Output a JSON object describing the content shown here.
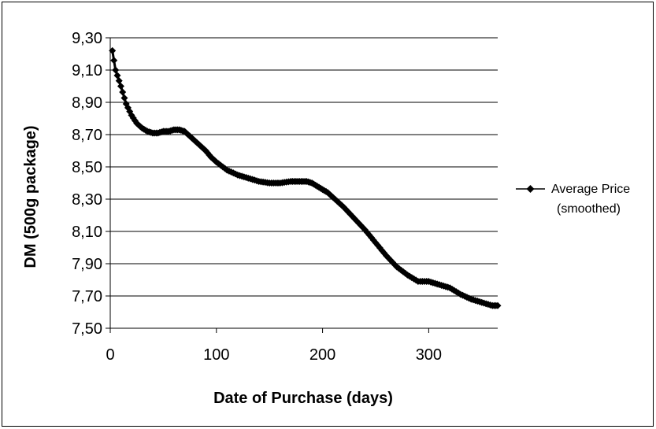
{
  "chart_data": {
    "type": "line",
    "xlabel": "Date of Purchase (days)",
    "ylabel": "DM (500g package)",
    "xlim": [
      0,
      365
    ],
    "ylim": [
      7.5,
      9.3
    ],
    "x_ticks": [
      "0",
      "100",
      "200",
      "300"
    ],
    "y_ticks": [
      "7,50",
      "7,70",
      "7,90",
      "8,10",
      "8,30",
      "8,50",
      "8,70",
      "8,90",
      "9,10",
      "9,30"
    ],
    "grid": "horizontal",
    "legend_position": "right",
    "series": [
      {
        "name": "Average Price (smoothed)",
        "legend_lines": [
          "Average Price",
          "(smoothed)"
        ],
        "color": "#000000",
        "marker": "diamond",
        "x": [
          2,
          5,
          10,
          15,
          20,
          25,
          30,
          35,
          40,
          45,
          50,
          55,
          60,
          65,
          70,
          75,
          80,
          85,
          90,
          95,
          100,
          110,
          120,
          130,
          140,
          150,
          160,
          170,
          175,
          180,
          185,
          190,
          195,
          200,
          205,
          210,
          220,
          230,
          240,
          250,
          260,
          270,
          280,
          290,
          300,
          310,
          320,
          330,
          340,
          350,
          360,
          365
        ],
        "y": [
          9.22,
          9.1,
          9.0,
          8.89,
          8.82,
          8.77,
          8.74,
          8.72,
          8.71,
          8.71,
          8.72,
          8.72,
          8.73,
          8.73,
          8.72,
          8.69,
          8.66,
          8.63,
          8.6,
          8.56,
          8.53,
          8.48,
          8.45,
          8.43,
          8.41,
          8.4,
          8.4,
          8.41,
          8.41,
          8.41,
          8.41,
          8.4,
          8.38,
          8.36,
          8.34,
          8.31,
          8.25,
          8.18,
          8.11,
          8.03,
          7.95,
          7.88,
          7.83,
          7.79,
          7.79,
          7.77,
          7.75,
          7.71,
          7.68,
          7.66,
          7.64,
          7.64
        ]
      }
    ]
  }
}
